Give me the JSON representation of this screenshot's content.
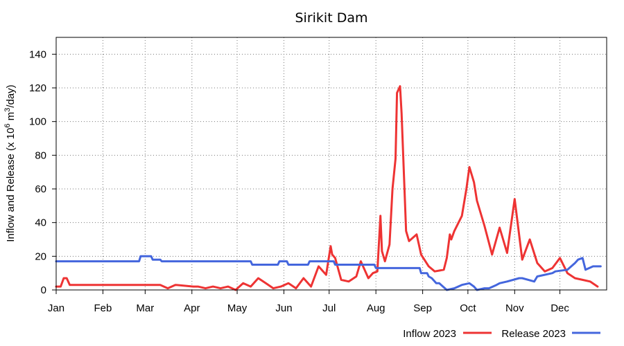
{
  "chart_data": {
    "type": "line",
    "title": "Sirikit Dam",
    "ylabel_main": "Inflow and Release (x 10",
    "ylabel_sup1": "6",
    "ylabel_mid": " m",
    "ylabel_sup2": "3",
    "ylabel_end": "/day)",
    "xlabel": "",
    "ylim": [
      0,
      150
    ],
    "yticks": [
      0,
      20,
      40,
      60,
      80,
      100,
      120,
      140
    ],
    "months": [
      "Jan",
      "Feb",
      "Mar",
      "Apr",
      "May",
      "Jun",
      "Jul",
      "Aug",
      "Sep",
      "Oct",
      "Nov",
      "Dec"
    ],
    "grid": true,
    "legend_position": "bottom-right",
    "series": [
      {
        "name": "Inflow 2023",
        "color": "#ee3333",
        "x_day": [
          1,
          4,
          6,
          8,
          10,
          30,
          60,
          70,
          75,
          80,
          92,
          95,
          100,
          105,
          110,
          115,
          120,
          125,
          130,
          135,
          140,
          145,
          150,
          155,
          160,
          165,
          170,
          175,
          180,
          183,
          184,
          186,
          190,
          195,
          200,
          203,
          208,
          211,
          214,
          216,
          217,
          219,
          222,
          224,
          226,
          227,
          229,
          230,
          233,
          235,
          240,
          243,
          248,
          252,
          258,
          260,
          262,
          263,
          265,
          270,
          273,
          275,
          278,
          280,
          285,
          290,
          295,
          300,
          305,
          310,
          315,
          320,
          325,
          330,
          335,
          340,
          345,
          350,
          355,
          360
        ],
        "y": [
          2,
          2,
          7,
          7,
          3,
          3,
          3,
          3,
          1,
          3,
          2,
          2,
          1,
          2,
          1,
          2,
          0,
          4,
          2,
          7,
          4,
          1,
          2,
          4,
          1,
          7,
          2,
          14,
          9,
          26,
          21,
          19,
          6,
          5,
          8,
          17,
          7,
          10,
          11,
          44,
          23,
          17,
          27,
          60,
          78,
          117,
          121,
          105,
          35,
          29,
          33,
          21,
          14,
          11,
          12,
          19,
          33,
          30,
          35,
          44,
          60,
          73,
          64,
          53,
          38,
          21,
          37,
          22,
          54,
          18,
          30,
          16,
          11,
          13,
          19,
          10,
          7,
          6,
          5,
          2
        ]
      },
      {
        "name": "Release 2023",
        "color": "#4466dd",
        "x_day": [
          1,
          56,
          57,
          64,
          65,
          70,
          71,
          130,
          131,
          148,
          149,
          154,
          155,
          168,
          169,
          183,
          185,
          186,
          198,
          200,
          212,
          213,
          226,
          227,
          242,
          243,
          247,
          248,
          250,
          252,
          253,
          255,
          260,
          265,
          270,
          275,
          278,
          280,
          285,
          288,
          293,
          295,
          300,
          308,
          310,
          318,
          320,
          330,
          332,
          340,
          345,
          347,
          350,
          352,
          357,
          362
        ],
        "y": [
          17,
          17,
          20,
          20,
          18,
          18,
          17,
          17,
          15,
          15,
          17,
          17,
          15,
          15,
          17,
          17,
          17,
          15,
          15,
          15,
          15,
          13,
          13,
          13,
          13,
          10,
          10,
          8,
          7,
          5,
          4,
          4,
          0,
          1,
          3,
          4,
          2,
          0,
          1,
          1,
          3,
          4,
          5,
          7,
          7,
          5,
          8,
          10,
          11,
          12,
          16,
          18,
          19,
          12,
          14,
          14
        ]
      }
    ]
  }
}
